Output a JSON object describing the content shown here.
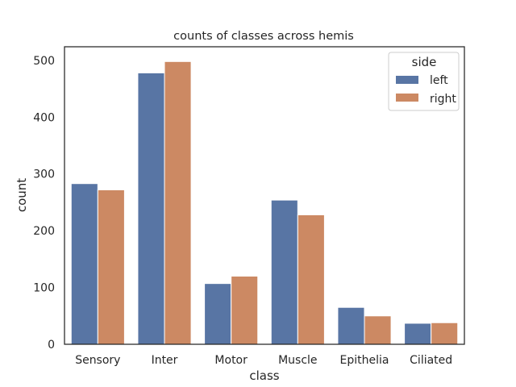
{
  "chart_data": {
    "type": "bar",
    "title": "counts of classes across hemis",
    "xlabel": "class",
    "ylabel": "count",
    "categories": [
      "Sensory",
      "Inter",
      "Motor",
      "Muscle",
      "Epithelia",
      "Ciliated"
    ],
    "series": [
      {
        "name": "left",
        "values": [
          283,
          478,
          107,
          254,
          65,
          37
        ],
        "color": "#5875a4"
      },
      {
        "name": "right",
        "values": [
          272,
          498,
          120,
          228,
          50,
          38
        ],
        "color": "#cc8963"
      }
    ],
    "ylim": [
      0,
      524
    ],
    "yticks": [
      0,
      100,
      200,
      300,
      400,
      500
    ],
    "grid": false,
    "legend": {
      "title": "side",
      "placement": "top-right"
    }
  }
}
